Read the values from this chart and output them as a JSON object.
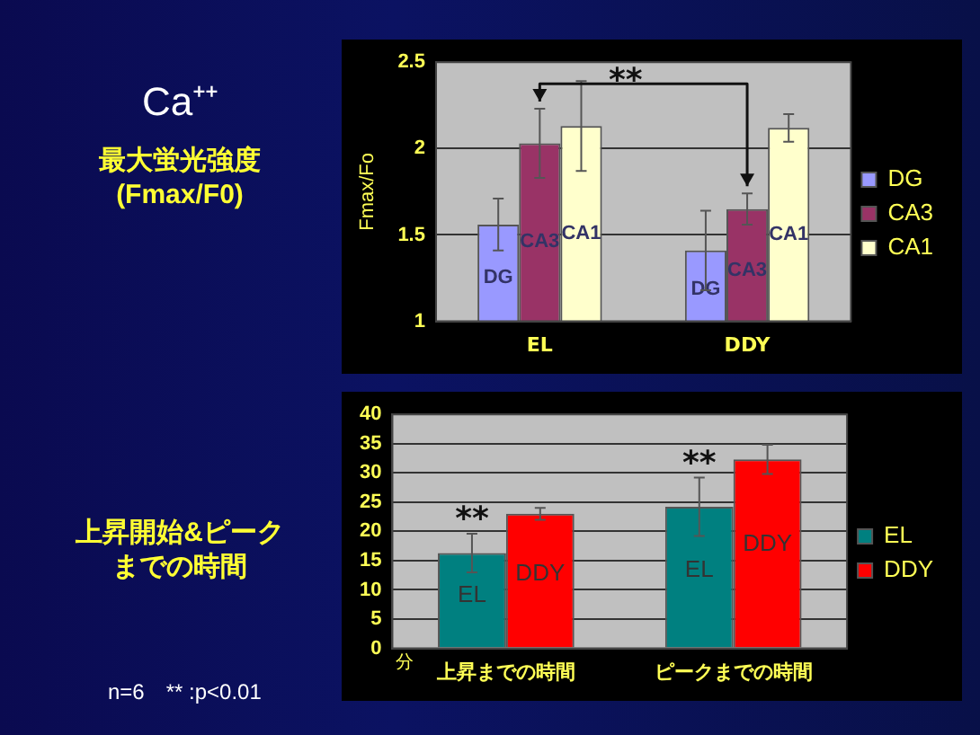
{
  "chart_data": [
    {
      "type": "bar",
      "title": "Ca⁺⁺",
      "subtitle": "最大蛍光強度\n(Fmax/F0)",
      "ylabel": "Fmax/Fo",
      "categories": [
        "EL",
        "DDY"
      ],
      "series": [
        {
          "name": "DG",
          "color": "#9999ff",
          "values": [
            1.56,
            1.41
          ],
          "errors": [
            0.15,
            0.23
          ]
        },
        {
          "name": "CA3",
          "color": "#993366",
          "values": [
            2.03,
            1.65
          ],
          "errors": [
            0.2,
            0.09
          ]
        },
        {
          "name": "CA1",
          "color": "#ffffcc",
          "values": [
            2.13,
            2.12
          ],
          "errors": [
            0.26,
            0.08
          ]
        }
      ],
      "ylim": [
        1,
        2.5
      ],
      "yticks": [
        1,
        1.5,
        2,
        2.5
      ],
      "grid": "y",
      "legend": "right",
      "annotations": [
        "**"
      ]
    },
    {
      "type": "bar",
      "title": "上昇開始&ピークまでの時間",
      "xlabel": "分",
      "categories": [
        "上昇までの時間",
        "ピークまでの時間"
      ],
      "series": [
        {
          "name": "EL",
          "color": "#008080",
          "values": [
            16.3,
            24.2
          ],
          "errors": [
            3.3,
            5
          ]
        },
        {
          "name": "DDY",
          "color": "#ff0000",
          "values": [
            23,
            32.3
          ],
          "errors": [
            1,
            2.5
          ]
        }
      ],
      "ylim": [
        0,
        40
      ],
      "yticks": [
        0,
        5,
        10,
        15,
        20,
        25,
        30,
        35,
        40
      ],
      "grid": "y",
      "legend": "right",
      "annotations": [
        {
          "text": "**",
          "x": "上昇までの時間",
          "y": 19.7
        },
        {
          "text": "**",
          "x": "ピークまでの時間",
          "y": 29.2
        },
        "n=6　** :p<0.01"
      ]
    }
  ]
}
